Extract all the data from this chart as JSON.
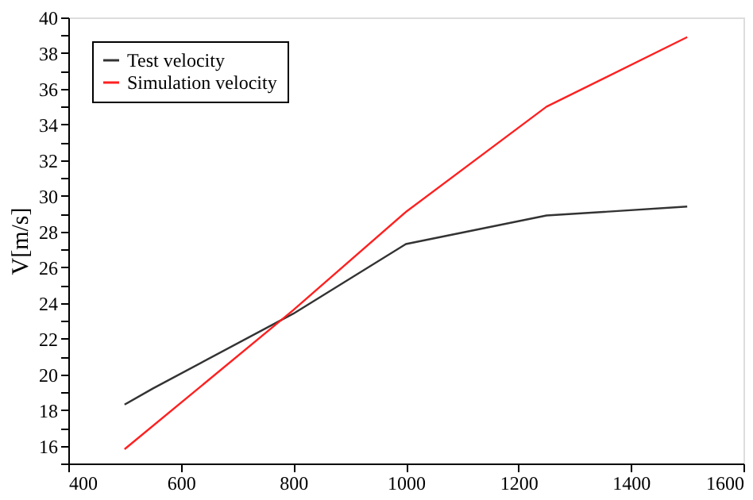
{
  "chart_data": {
    "type": "line",
    "ylabel": "V[m/s]",
    "xlim": [
      400,
      1600
    ],
    "xticks": [
      400,
      600,
      800,
      1000,
      1200,
      1400,
      1600
    ],
    "ylim": [
      15,
      40
    ],
    "yticks": [
      {
        "value": 15,
        "label": null
      },
      16,
      {
        "value": 17,
        "label": null
      },
      18,
      {
        "value": 19,
        "label": null
      },
      20,
      {
        "value": 21,
        "label": null
      },
      22,
      {
        "value": 23,
        "label": null
      },
      24,
      {
        "value": 25,
        "label": null
      },
      26,
      {
        "value": 27,
        "label": null
      },
      28,
      {
        "value": 29,
        "label": null
      },
      30,
      {
        "value": 31,
        "label": null
      },
      32,
      {
        "value": 33,
        "label": null
      },
      34,
      {
        "value": 35,
        "label": null
      },
      36,
      {
        "value": 37,
        "label": null
      },
      38,
      {
        "value": 39,
        "label": null
      },
      40
    ],
    "grid": false,
    "legend": "top left",
    "marker": "none",
    "line_style": "solid",
    "series": [
      {
        "name": "Test velocity",
        "color": "#333333",
        "x": [
          500,
          550,
          800,
          1000,
          1250,
          1500
        ],
        "values": [
          18.3,
          19.2,
          23.4,
          27.3,
          28.9,
          29.4
        ]
      },
      {
        "name": "Simulation velocity",
        "color": "#ff2020",
        "x": [
          500,
          800,
          1000,
          1250,
          1500
        ],
        "values": [
          15.8,
          23.6,
          29.1,
          35.0,
          38.9
        ]
      }
    ]
  }
}
